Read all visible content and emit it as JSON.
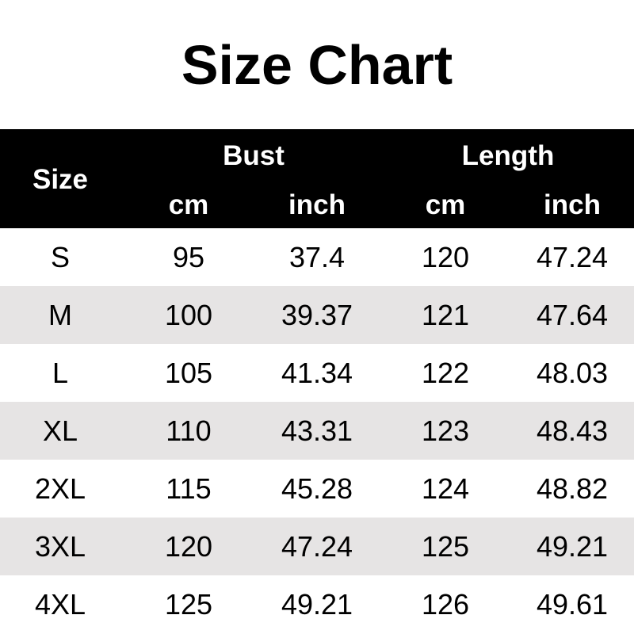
{
  "title": "Size Chart",
  "chart_data": {
    "type": "table",
    "title": "Size Chart",
    "header": {
      "size": "Size",
      "groups": [
        "Bust",
        "Length"
      ],
      "units": [
        "cm",
        "inch",
        "cm",
        "inch"
      ]
    },
    "rows": [
      [
        "S",
        "95",
        "37.4",
        "120",
        "47.24"
      ],
      [
        "M",
        "100",
        "39.37",
        "121",
        "47.64"
      ],
      [
        "L",
        "105",
        "41.34",
        "122",
        "48.03"
      ],
      [
        "XL",
        "110",
        "43.31",
        "123",
        "48.43"
      ],
      [
        "2XL",
        "115",
        "45.28",
        "124",
        "48.82"
      ],
      [
        "3XL",
        "120",
        "47.24",
        "125",
        "49.21"
      ],
      [
        "4XL",
        "125",
        "49.21",
        "126",
        "49.61"
      ]
    ],
    "colors": {
      "header_bg": "#000000",
      "header_text": "#ffffff",
      "alt_row": "#e6e4e4"
    }
  }
}
